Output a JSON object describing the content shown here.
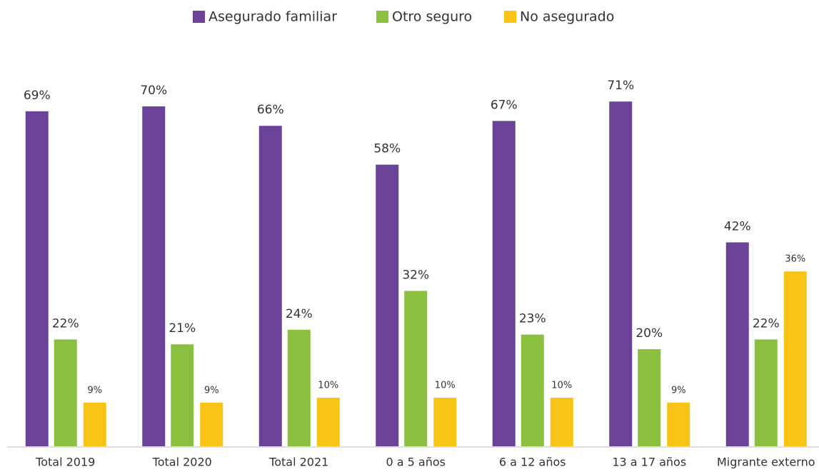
{
  "chart_data": {
    "type": "bar",
    "categories": [
      "Total 2019",
      "Total 2020",
      "Total 2021",
      "0 a 5 años",
      "6 a 12 años",
      "13 a 17 años",
      "Migrante externo"
    ],
    "series": [
      {
        "name": "Asegurado familiar",
        "color": "#6a4399",
        "values": [
          69,
          70,
          66,
          58,
          67,
          71,
          42
        ],
        "value_labels": [
          "69%",
          "70%",
          "66%",
          "58%",
          "67%",
          "71%",
          "42%"
        ]
      },
      {
        "name": "Otro seguro",
        "color": "#8bbf3f",
        "values": [
          22,
          21,
          24,
          32,
          23,
          20,
          22
        ],
        "value_labels": [
          "22%",
          "21%",
          "24%",
          "32%",
          "23%",
          "20%",
          "22%"
        ]
      },
      {
        "name": "No asegurado",
        "color": "#f7c315",
        "values": [
          9,
          9,
          10,
          10,
          10,
          9,
          36
        ],
        "value_labels": [
          "9%",
          "9%",
          "10%",
          "10%",
          "10%",
          "9%",
          "36%"
        ]
      }
    ],
    "ylim": [
      0,
      80
    ],
    "legend": "top"
  }
}
